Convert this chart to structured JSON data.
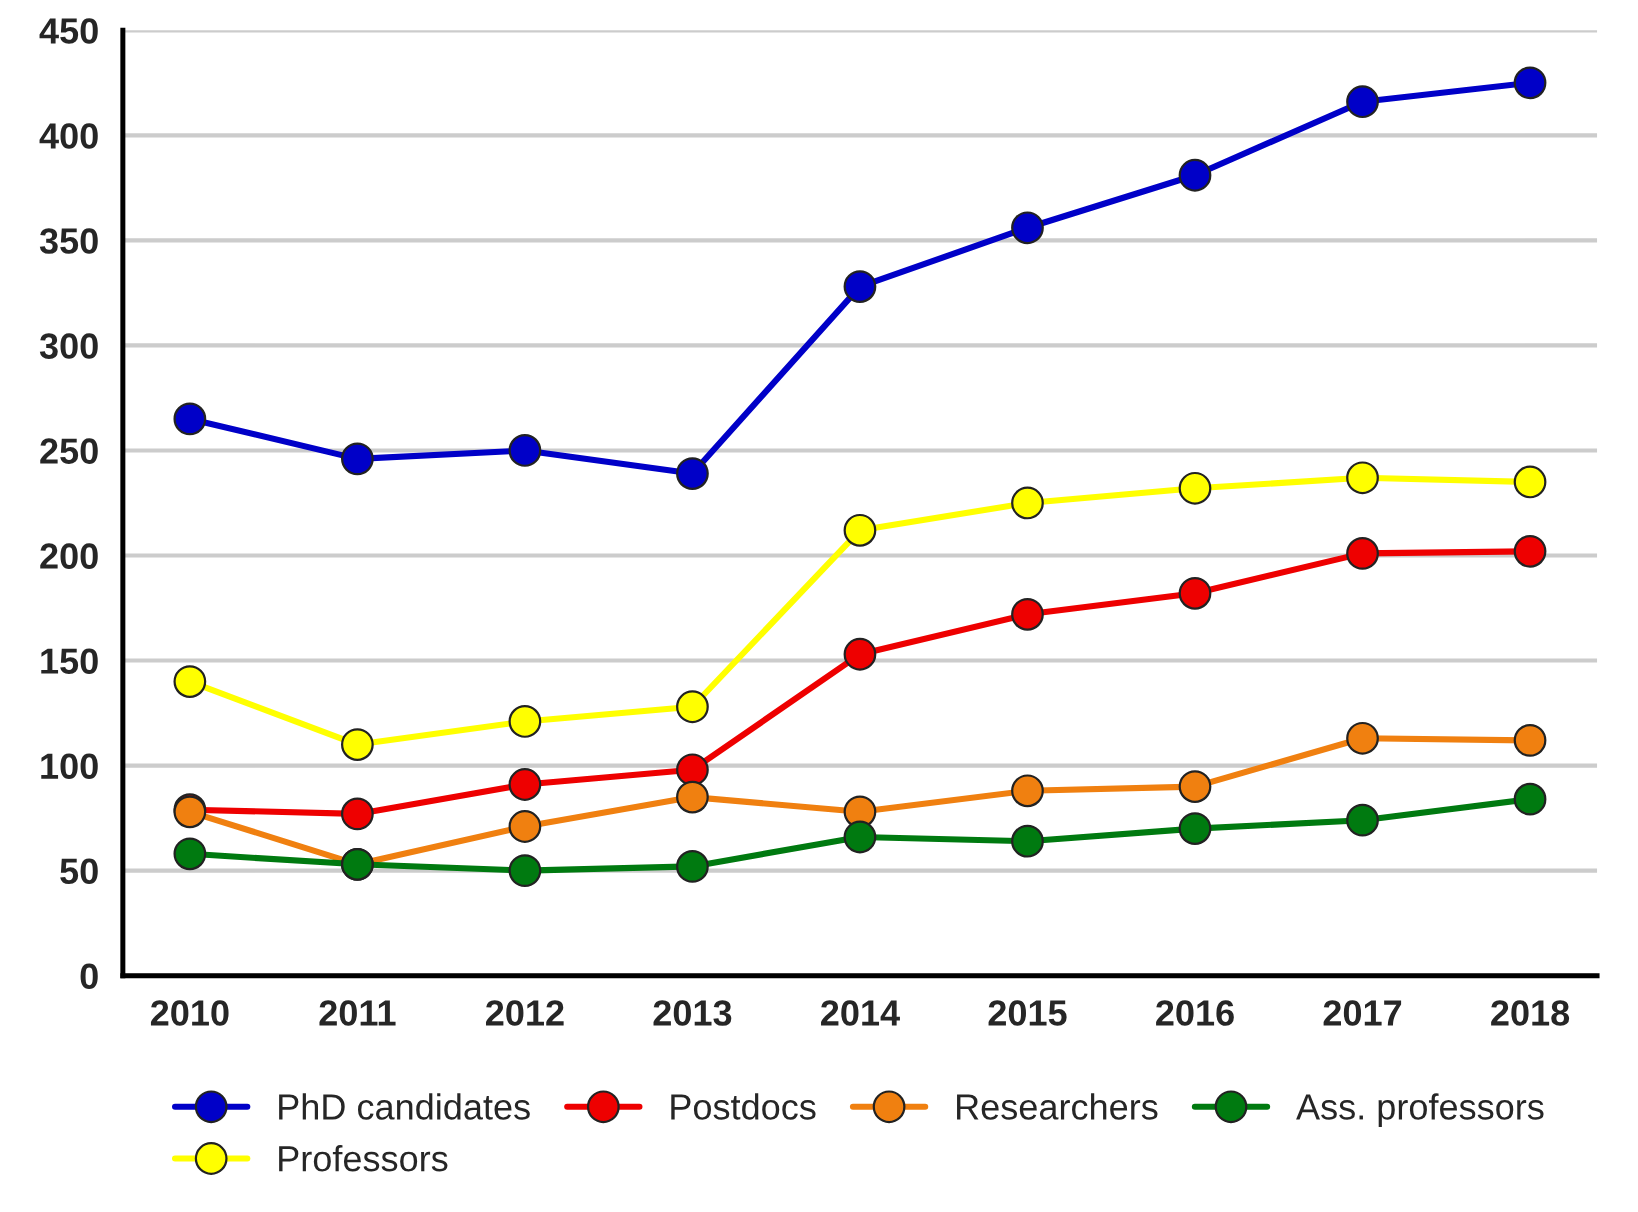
{
  "chart_data": {
    "type": "line",
    "categories": [
      "2010",
      "2011",
      "2012",
      "2013",
      "2014",
      "2015",
      "2016",
      "2017",
      "2018"
    ],
    "series": [
      {
        "name": "PhD candidates",
        "color": "#0000c8",
        "values": [
          265,
          246,
          250,
          239,
          328,
          356,
          381,
          416,
          425
        ]
      },
      {
        "name": "Postdocs",
        "color": "#ee0000",
        "values": [
          79,
          77,
          91,
          98,
          153,
          172,
          182,
          201,
          202
        ]
      },
      {
        "name": "Researchers",
        "color": "#f08010",
        "values": [
          78,
          53,
          71,
          85,
          78,
          88,
          90,
          113,
          112
        ]
      },
      {
        "name": "Ass. professors",
        "color": "#007a10",
        "values": [
          58,
          53,
          50,
          52,
          66,
          64,
          70,
          74,
          84
        ]
      },
      {
        "name": "Professors",
        "color": "#ffff00",
        "values": [
          140,
          110,
          121,
          128,
          212,
          225,
          232,
          237,
          235
        ]
      }
    ],
    "ylim": [
      0,
      450
    ],
    "yticks": [
      0,
      50,
      100,
      150,
      200,
      250,
      300,
      350,
      400,
      450
    ],
    "grid": "y",
    "legend": "bottom",
    "marker": "circle",
    "line_style": "solid"
  }
}
